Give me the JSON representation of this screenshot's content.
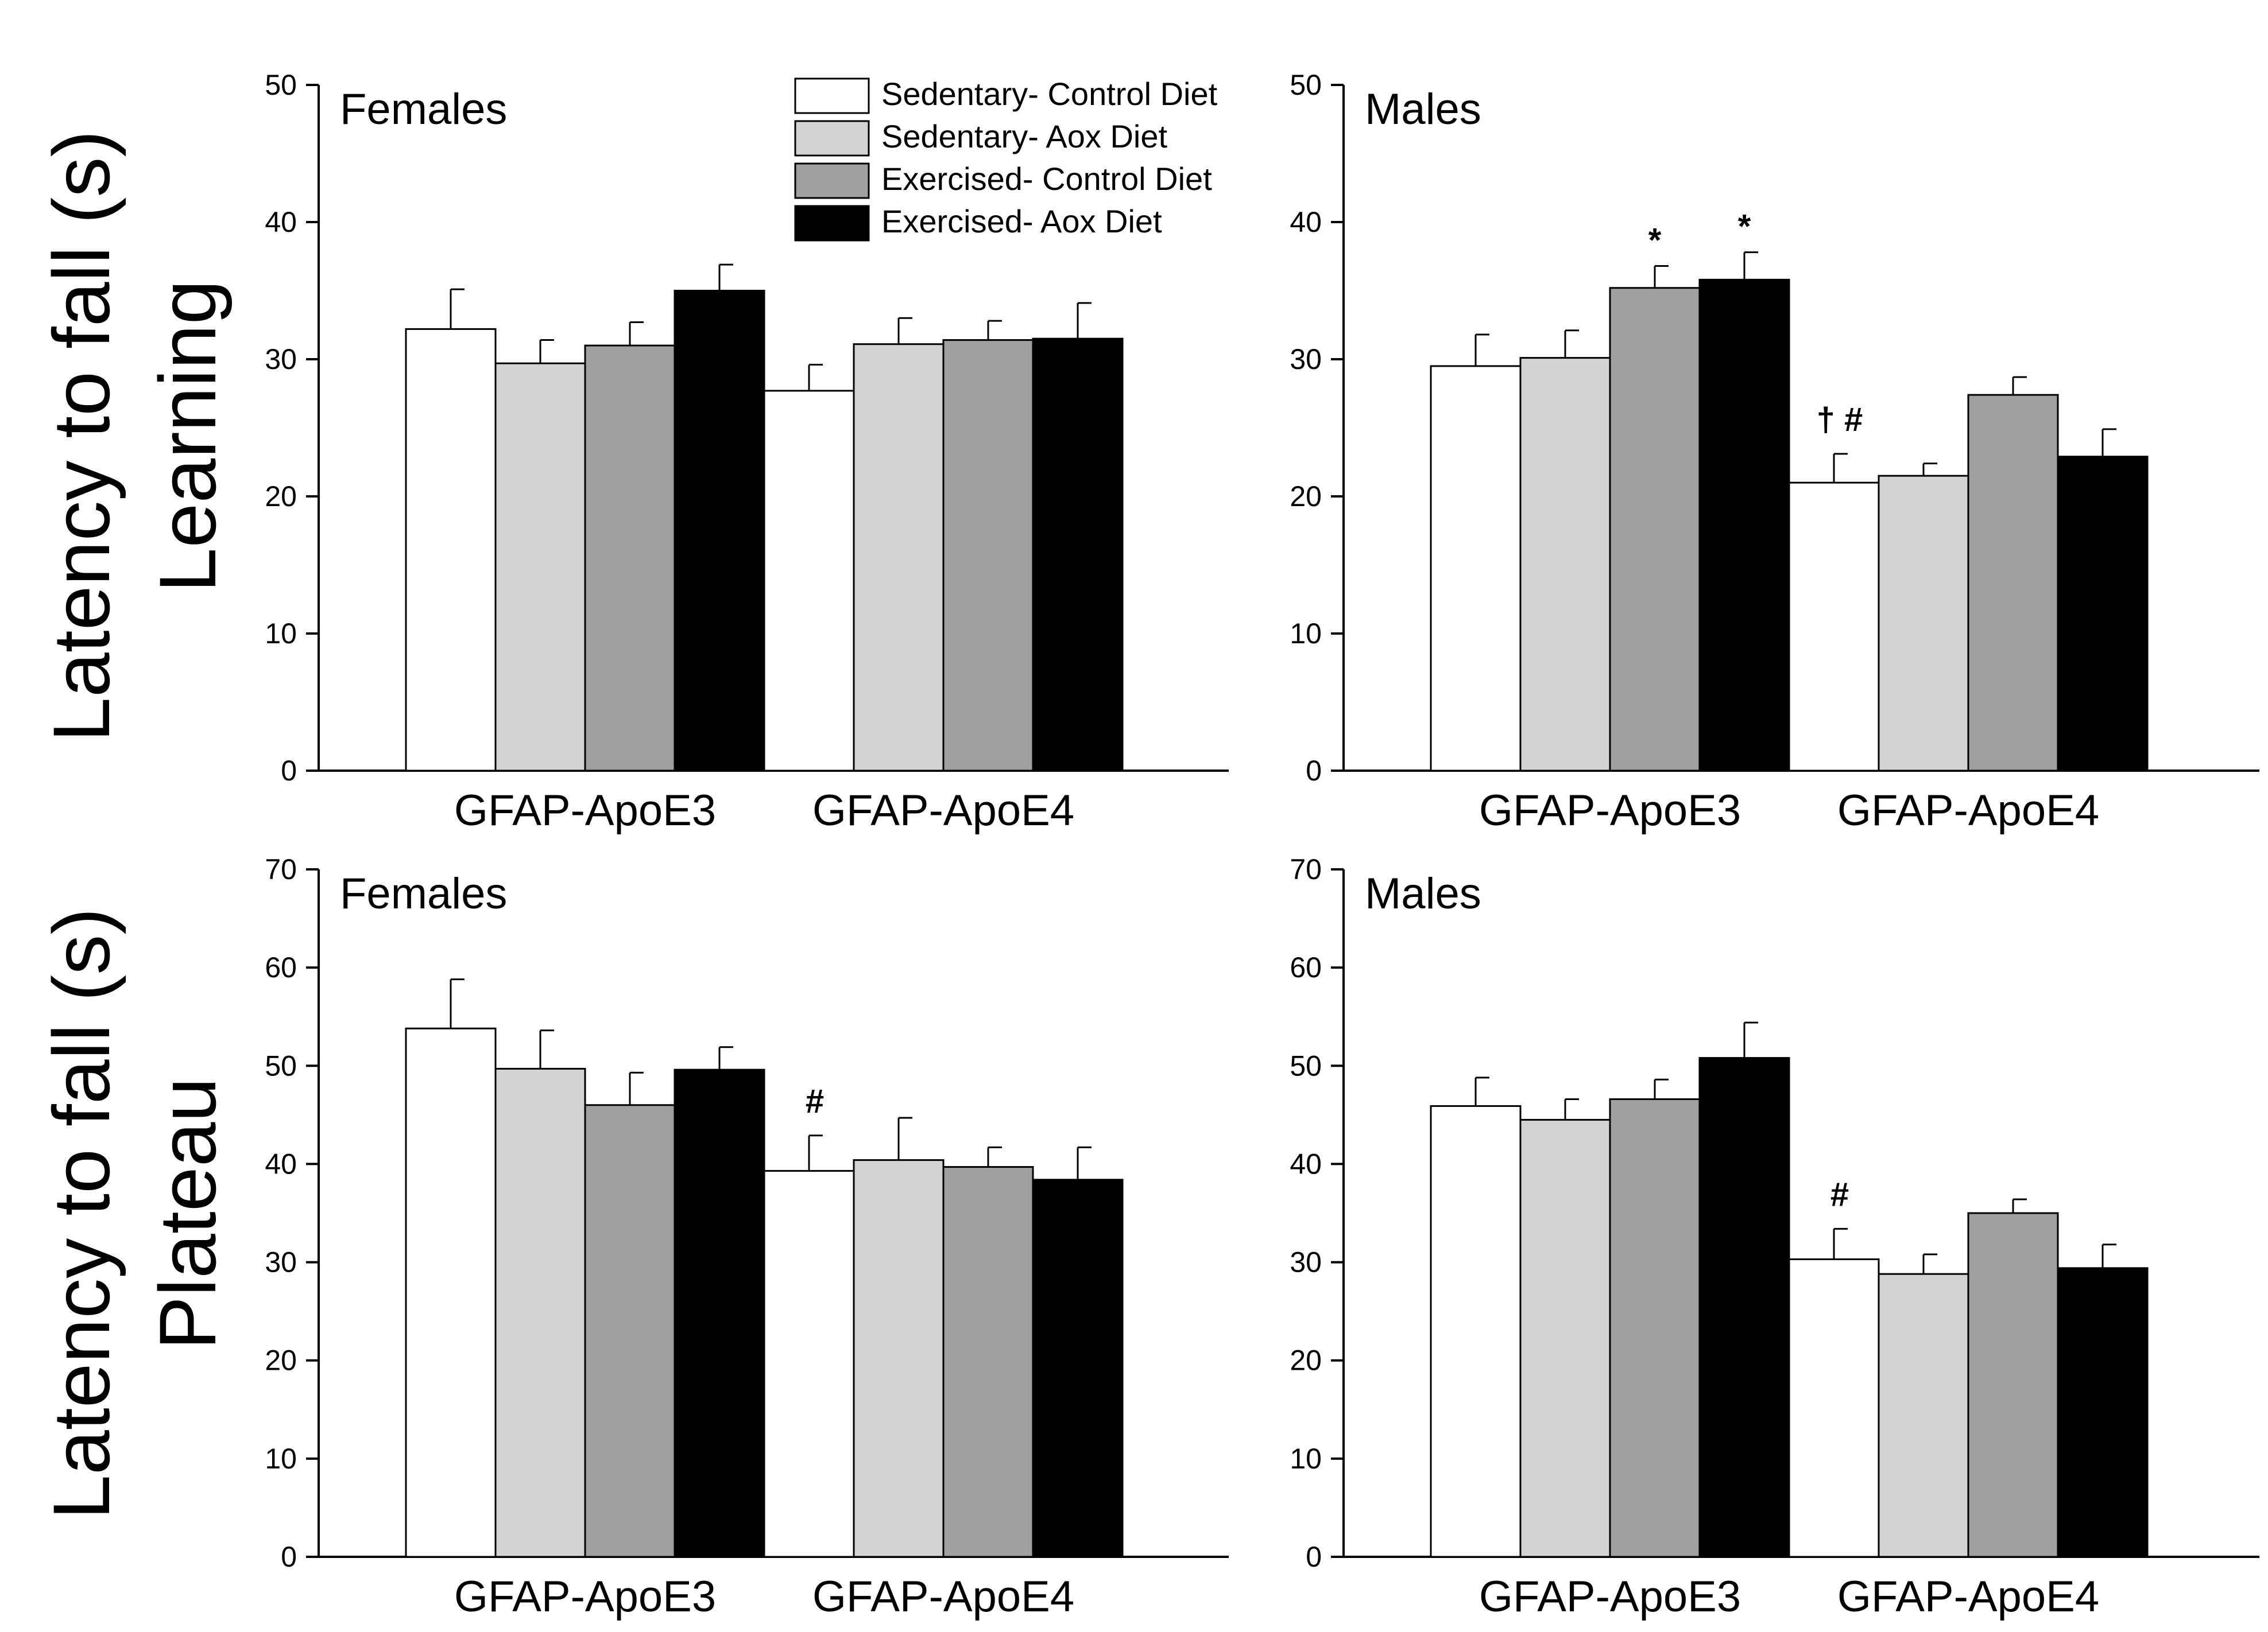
{
  "legend": [
    {
      "label": "Sedentary- Control Diet",
      "color": "#ffffff"
    },
    {
      "label": "Sedentary- Aox Diet",
      "color": "#d3d3d3"
    },
    {
      "label": "Exercised- Control Diet",
      "color": "#a0a0a0"
    },
    {
      "label": "Exercised- Aox Diet",
      "color": "#000000"
    }
  ],
  "row_labels": {
    "learning": {
      "line1": "Latency to fall (s)",
      "line2": "Learning"
    },
    "plateau": {
      "line1": "Latency to fall (s)",
      "line2": "Plateau"
    }
  },
  "chart_data": [
    {
      "type": "bar",
      "title": "Females",
      "row": "Learning",
      "categories": [
        "GFAP-ApoE3",
        "GFAP-ApoE4"
      ],
      "ylim": [
        0,
        50
      ],
      "yticks": [
        0,
        10,
        20,
        30,
        40,
        50
      ],
      "ylabel": "Latency to fall (s)",
      "series": [
        {
          "name": "Sedentary- Control Diet",
          "values": [
            32.2,
            27.7
          ],
          "errors": [
            2.9,
            1.9
          ]
        },
        {
          "name": "Sedentary- Aox Diet",
          "values": [
            29.7,
            31.1
          ],
          "errors": [
            1.7,
            1.9
          ]
        },
        {
          "name": "Exercised- Control Diet",
          "values": [
            31.0,
            31.4
          ],
          "errors": [
            1.7,
            1.4
          ]
        },
        {
          "name": "Exercised- Aox Diet",
          "values": [
            35.0,
            31.5
          ],
          "errors": [
            1.9,
            2.6
          ]
        }
      ],
      "annotations": []
    },
    {
      "type": "bar",
      "title": "Males",
      "row": "Learning",
      "categories": [
        "GFAP-ApoE3",
        "GFAP-ApoE4"
      ],
      "ylim": [
        0,
        50
      ],
      "yticks": [
        0,
        10,
        20,
        30,
        40,
        50
      ],
      "ylabel": "Latency to fall (s)",
      "series": [
        {
          "name": "Sedentary- Control Diet",
          "values": [
            29.5,
            21.0
          ],
          "errors": [
            2.3,
            2.1
          ]
        },
        {
          "name": "Sedentary- Aox Diet",
          "values": [
            30.1,
            21.5
          ],
          "errors": [
            2.0,
            0.9
          ]
        },
        {
          "name": "Exercised- Control Diet",
          "values": [
            35.2,
            27.4
          ],
          "errors": [
            1.6,
            1.3
          ]
        },
        {
          "name": "Exercised- Aox Diet",
          "values": [
            35.8,
            22.9
          ],
          "errors": [
            2.0,
            2.0
          ]
        }
      ],
      "annotations": [
        {
          "text": "*",
          "series": 2,
          "category": 0
        },
        {
          "text": "*",
          "series": 3,
          "category": 0
        },
        {
          "text": "† #",
          "series": 0,
          "category": 1
        }
      ]
    },
    {
      "type": "bar",
      "title": "Females",
      "row": "Plateau",
      "categories": [
        "GFAP-ApoE3",
        "GFAP-ApoE4"
      ],
      "ylim": [
        0,
        70
      ],
      "yticks": [
        0,
        10,
        20,
        30,
        40,
        50,
        60,
        70
      ],
      "ylabel": "Latency to fall (s)",
      "series": [
        {
          "name": "Sedentary- Control Diet",
          "values": [
            53.8,
            39.3
          ],
          "errors": [
            5.0,
            3.6
          ]
        },
        {
          "name": "Sedentary- Aox Diet",
          "values": [
            49.7,
            40.4
          ],
          "errors": [
            3.9,
            4.3
          ]
        },
        {
          "name": "Exercised- Control Diet",
          "values": [
            46.0,
            39.7
          ],
          "errors": [
            3.3,
            2.0
          ]
        },
        {
          "name": "Exercised- Aox Diet",
          "values": [
            49.6,
            38.4
          ],
          "errors": [
            2.3,
            3.3
          ]
        }
      ],
      "annotations": [
        {
          "text": "#",
          "series": 0,
          "category": 1
        }
      ]
    },
    {
      "type": "bar",
      "title": "Males",
      "row": "Plateau",
      "categories": [
        "GFAP-ApoE3",
        "GFAP-ApoE4"
      ],
      "ylim": [
        0,
        70
      ],
      "yticks": [
        0,
        10,
        20,
        30,
        40,
        50,
        60,
        70
      ],
      "ylabel": "Latency to fall (s)",
      "series": [
        {
          "name": "Sedentary- Control Diet",
          "values": [
            45.9,
            30.3
          ],
          "errors": [
            2.9,
            3.1
          ]
        },
        {
          "name": "Sedentary- Aox Diet",
          "values": [
            44.5,
            28.8
          ],
          "errors": [
            2.1,
            2.0
          ]
        },
        {
          "name": "Exercised- Control Diet",
          "values": [
            46.6,
            35.0
          ],
          "errors": [
            2.0,
            1.4
          ]
        },
        {
          "name": "Exercised- Aox Diet",
          "values": [
            50.8,
            29.4
          ],
          "errors": [
            3.6,
            2.4
          ]
        }
      ],
      "annotations": [
        {
          "text": "#",
          "series": 0,
          "category": 1
        }
      ]
    }
  ]
}
